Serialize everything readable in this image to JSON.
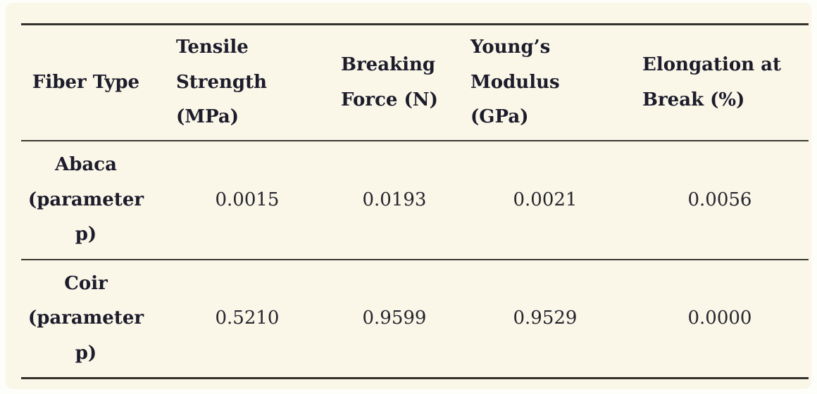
{
  "colors": {
    "sheet_background": "#faf6e8",
    "frame_background": "#fdfdfa",
    "heading_ink": "#1c1c2b",
    "value_ink": "#26262e",
    "rule": "#33312c"
  },
  "table": {
    "columns": [
      {
        "id": "fiber_type",
        "label": "Fiber Type"
      },
      {
        "id": "tensile_strength",
        "label": "Tensile\nStrength\n(MPa)"
      },
      {
        "id": "breaking_force",
        "label": "Breaking\nForce (N)"
      },
      {
        "id": "youngs_modulus",
        "label": "Young’s\nModulus\n(GPa)"
      },
      {
        "id": "elongation_at_break",
        "label": "Elongation at\nBreak (%)"
      }
    ],
    "rows": [
      {
        "fiber": "Abaca\n(parameter\np)",
        "tensile_strength_mpa": "0.0015",
        "breaking_force_n": "0.0193",
        "youngs_modulus_gpa": "0.0021",
        "elongation_at_break_pct": "0.0056"
      },
      {
        "fiber": "Coir\n(parameter\np)",
        "tensile_strength_mpa": "0.5210",
        "breaking_force_n": "0.9599",
        "youngs_modulus_gpa": "0.9529",
        "elongation_at_break_pct": "0.0000"
      }
    ]
  },
  "chart_data": {
    "type": "table",
    "columns": [
      "Fiber Type",
      "Tensile Strength (MPa)",
      "Breaking Force (N)",
      "Young's Modulus (GPa)",
      "Elongation at Break (%)"
    ],
    "rows": [
      [
        "Abaca (parameter p)",
        0.0015,
        0.0193,
        0.0021,
        0.0056
      ],
      [
        "Coir (parameter p)",
        0.521,
        0.9599,
        0.9529,
        0.0
      ]
    ]
  }
}
